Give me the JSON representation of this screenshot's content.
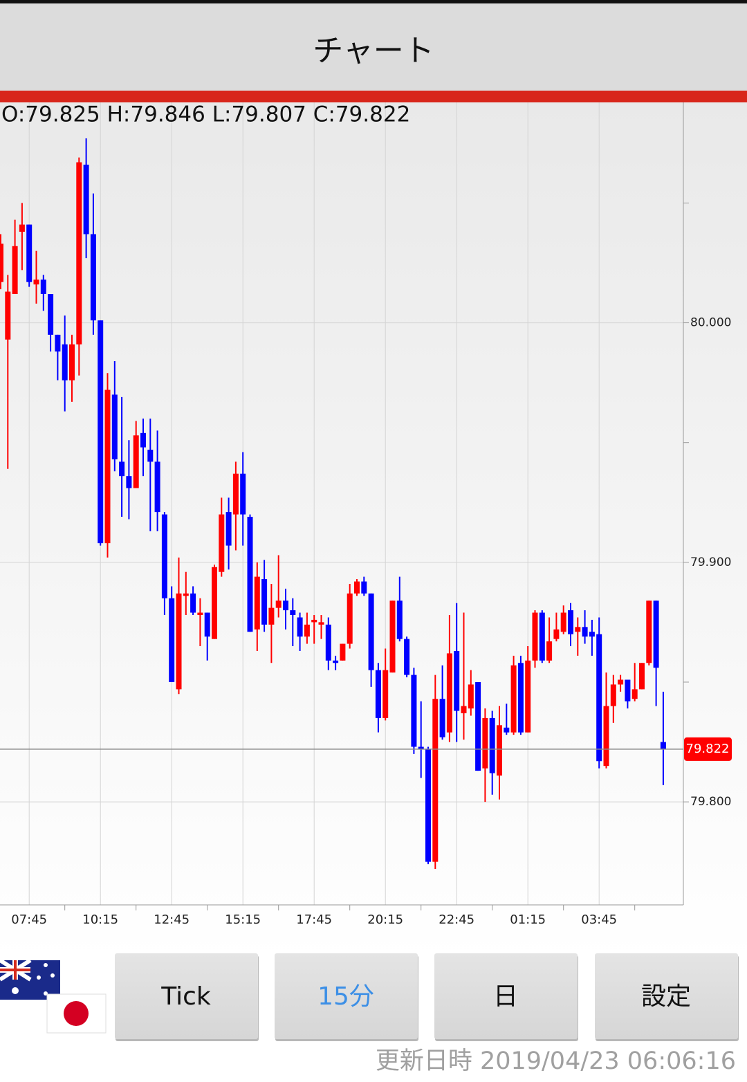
{
  "header": {
    "title": "チャート"
  },
  "chart_data": {
    "type": "candlestick",
    "ohlc_text": "O:79.825 H:79.846 L:79.807 C:79.822",
    "categories": [
      null,
      null,
      null,
      null,
      "07:45",
      null,
      null,
      null,
      null,
      null,
      null,
      null,
      null,
      null,
      "10:15",
      null,
      null,
      null,
      null,
      null,
      null,
      null,
      null,
      null,
      "12:45",
      null,
      null,
      null,
      null,
      null,
      null,
      null,
      null,
      null,
      "15:15",
      null,
      null,
      null,
      null,
      null,
      null,
      null,
      null,
      null,
      "17:45",
      null,
      null,
      null,
      null,
      null,
      null,
      null,
      null,
      null,
      "20:15",
      null,
      null,
      null,
      null,
      null,
      null,
      null,
      null,
      null,
      "22:45",
      null,
      null,
      null,
      null,
      null,
      null,
      null,
      null,
      null,
      "01:15",
      null,
      null,
      null,
      null,
      null,
      null,
      null,
      null,
      null,
      "03:45",
      null,
      null,
      null,
      null,
      null,
      null,
      null,
      null,
      null
    ],
    "open": [
      80.017,
      79.993,
      80.012,
      80.038,
      80.041,
      80.016,
      80.018,
      80.012,
      79.995,
      79.991,
      79.976,
      79.991,
      80.066,
      80.037,
      80.001,
      79.908,
      79.97,
      79.942,
      79.936,
      79.931,
      79.954,
      79.947,
      79.942,
      79.92,
      79.885,
      79.847,
      79.886,
      79.887,
      79.878,
      79.879,
      79.868,
      79.896,
      79.921,
      79.92,
      79.937,
      79.919,
      79.872,
      79.893,
      79.874,
      79.881,
      79.884,
      79.88,
      79.877,
      79.869,
      79.875,
      79.874,
      79.874,
      79.859,
      79.859,
      79.866,
      79.887,
      79.892,
      79.887,
      79.855,
      79.835,
      79.854,
      79.884,
      79.868,
      79.853,
      79.823,
      79.822,
      79.775,
      79.843,
      79.829,
      79.863,
      79.837,
      79.839,
      79.85,
      79.814,
      79.835,
      79.811,
      79.831,
      79.829,
      79.858,
      79.829,
      79.859,
      79.879,
      79.859,
      79.868,
      79.871,
      79.88,
      79.871,
      79.873,
      79.871,
      79.87,
      79.815,
      79.84,
      79.849,
      79.851,
      79.843,
      79.847,
      79.858,
      79.884,
      79.825
    ],
    "high": [
      80.037,
      80.02,
      80.043,
      80.05,
      80.041,
      80.03,
      80.02,
      80.012,
      79.995,
      80.003,
      79.995,
      80.069,
      80.077,
      80.054,
      80.001,
      79.979,
      79.984,
      79.969,
      79.951,
      79.959,
      79.96,
      79.96,
      79.955,
      79.921,
      79.89,
      79.902,
      79.896,
      79.89,
      79.885,
      79.879,
      79.899,
      79.927,
      79.927,
      79.942,
      79.946,
      79.92,
      79.9,
      79.901,
      79.891,
      79.903,
      79.889,
      79.885,
      79.879,
      79.879,
      79.878,
      79.878,
      79.877,
      79.861,
      79.866,
      79.891,
      79.893,
      79.894,
      79.887,
      79.858,
      79.864,
      79.884,
      79.894,
      79.869,
      79.856,
      79.842,
      79.823,
      79.853,
      79.857,
      79.878,
      79.883,
      79.879,
      79.855,
      79.85,
      79.839,
      79.838,
      79.84,
      79.841,
      79.861,
      79.861,
      79.865,
      79.88,
      79.88,
      79.877,
      79.879,
      79.882,
      79.883,
      79.877,
      79.88,
      79.876,
      79.877,
      79.854,
      79.853,
      79.853,
      79.851,
      79.858,
      79.858,
      79.884,
      79.884,
      79.846
    ],
    "low": [
      80.014,
      79.939,
      80.012,
      80.022,
      80.015,
      80.008,
      80.005,
      79.988,
      79.976,
      79.963,
      79.967,
      79.978,
      80.027,
      79.995,
      79.907,
      79.902,
      79.938,
      79.919,
      79.918,
      79.931,
      79.936,
      79.913,
      79.913,
      79.878,
      79.85,
      79.845,
      79.878,
      79.878,
      79.865,
      79.859,
      79.868,
      79.894,
      79.897,
      79.905,
      79.907,
      79.871,
      79.863,
      79.871,
      79.858,
      79.877,
      79.872,
      79.865,
      79.863,
      79.866,
      79.866,
      79.868,
      79.855,
      79.855,
      79.859,
      79.864,
      79.886,
      79.886,
      79.848,
      79.829,
      79.834,
      79.854,
      79.867,
      79.852,
      79.82,
      79.81,
      79.774,
      79.772,
      79.826,
      79.825,
      79.825,
      79.826,
      79.836,
      79.813,
      79.8,
      79.803,
      79.801,
      79.828,
      79.828,
      79.828,
      79.829,
      79.856,
      79.858,
      79.858,
      79.867,
      79.87,
      79.865,
      79.861,
      79.866,
      79.861,
      79.814,
      79.814,
      79.833,
      79.846,
      79.839,
      79.842,
      79.847,
      79.857,
      79.84,
      79.807
    ],
    "close": [
      80.033,
      80.013,
      80.032,
      80.041,
      80.017,
      80.018,
      80.012,
      79.995,
      79.988,
      79.976,
      79.991,
      80.067,
      80.037,
      80.001,
      79.908,
      79.972,
      79.943,
      79.936,
      79.931,
      79.953,
      79.948,
      79.942,
      79.921,
      79.885,
      79.85,
      79.887,
      79.887,
      79.879,
      79.879,
      79.869,
      79.898,
      79.92,
      79.907,
      79.937,
      79.92,
      79.871,
      79.894,
      79.874,
      79.881,
      79.884,
      79.88,
      79.878,
      79.869,
      79.874,
      79.876,
      79.875,
      79.859,
      79.858,
      79.866,
      79.887,
      79.892,
      79.887,
      79.855,
      79.835,
      79.855,
      79.884,
      79.868,
      79.853,
      79.823,
      79.822,
      79.775,
      79.843,
      79.827,
      79.862,
      79.838,
      79.84,
      79.849,
      79.813,
      79.835,
      79.812,
      79.832,
      79.829,
      79.857,
      79.829,
      79.859,
      79.879,
      79.859,
      79.867,
      79.872,
      79.879,
      79.87,
      79.873,
      79.869,
      79.869,
      79.817,
      79.84,
      79.849,
      79.851,
      79.842,
      79.847,
      79.858,
      79.884,
      79.856,
      79.822
    ],
    "up_color": "#ff0000",
    "down_color": "#0000ff",
    "ylim": [
      79.757,
      80.092
    ],
    "yticks": [
      {
        "value": 79.8,
        "label": "79.800"
      },
      {
        "value": 79.9,
        "label": "79.900"
      },
      {
        "value": 80,
        "label": "80.000"
      }
    ],
    "minor_yticks": [
      79.85,
      79.95,
      80.05
    ],
    "grid": true
  },
  "buttons": [
    "Tick",
    "15分",
    "日",
    "設定"
  ],
  "updated": "更新日時 2019/04/23 06:06:16"
}
